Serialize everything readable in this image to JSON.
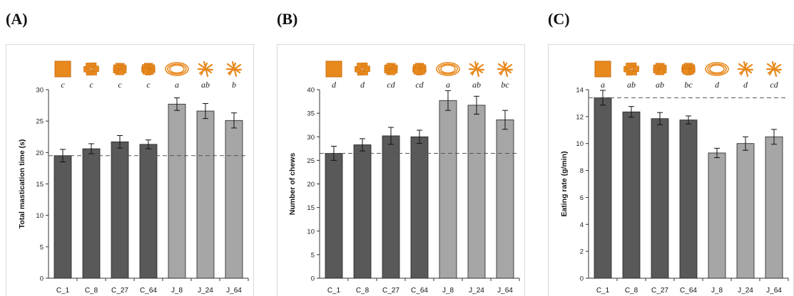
{
  "panels": [
    {
      "label": "(A)"
    },
    {
      "label": "(B)"
    },
    {
      "label": "(C)"
    }
  ],
  "colors": {
    "C_series": "#595959",
    "J_series": "#a6a6a6",
    "bar_edge": "#222222",
    "reference_line": "#555555",
    "food_icon": "#e8891e"
  },
  "chart_data": [
    {
      "type": "bar",
      "title": "",
      "xlabel": "",
      "ylabel": "Total mastication time (s)",
      "categories": [
        "C_1",
        "C_8",
        "C_27",
        "C_64",
        "J_8",
        "J_24",
        "J_64"
      ],
      "values": [
        19.5,
        20.6,
        21.7,
        21.3,
        27.7,
        26.6,
        25.1
      ],
      "errors": [
        1.0,
        0.8,
        1.0,
        0.7,
        1.0,
        1.2,
        1.2
      ],
      "significance": [
        "c",
        "c",
        "c",
        "c",
        "a",
        "ab",
        "b"
      ],
      "ylim": [
        0,
        30
      ],
      "yticks": [
        0,
        5,
        10,
        15,
        20,
        25,
        30
      ],
      "reference_line": 19.5,
      "grid": false
    },
    {
      "type": "bar",
      "title": "",
      "xlabel": "",
      "ylabel": "Number of chews",
      "categories": [
        "C_1",
        "C_8",
        "C_27",
        "C_64",
        "J_8",
        "J_24",
        "J_64"
      ],
      "values": [
        26.5,
        28.3,
        30.2,
        30.0,
        37.7,
        36.7,
        33.6
      ],
      "errors": [
        1.5,
        1.3,
        1.8,
        1.4,
        2.1,
        1.9,
        2.0
      ],
      "significance": [
        "d",
        "d",
        "cd",
        "cd",
        "a",
        "ab",
        "bc"
      ],
      "ylim": [
        0,
        40
      ],
      "yticks": [
        0,
        5,
        10,
        15,
        20,
        25,
        30,
        35,
        40
      ],
      "reference_line": 26.5,
      "grid": false
    },
    {
      "type": "bar",
      "title": "",
      "xlabel": "",
      "ylabel": "Eating rate (g/min)",
      "categories": [
        "C_1",
        "C_8",
        "C_27",
        "C_64",
        "J_8",
        "J_24",
        "J_64"
      ],
      "values": [
        13.4,
        12.35,
        11.85,
        11.75,
        9.3,
        10.0,
        10.5
      ],
      "errors": [
        0.55,
        0.4,
        0.45,
        0.3,
        0.35,
        0.5,
        0.55
      ],
      "significance": [
        "a",
        "ab",
        "ab",
        "bc",
        "d",
        "d",
        "cd"
      ],
      "ylim": [
        0,
        14
      ],
      "yticks": [
        0,
        2,
        4,
        6,
        8,
        10,
        12,
        14
      ],
      "reference_line": 13.4,
      "grid": false
    }
  ]
}
